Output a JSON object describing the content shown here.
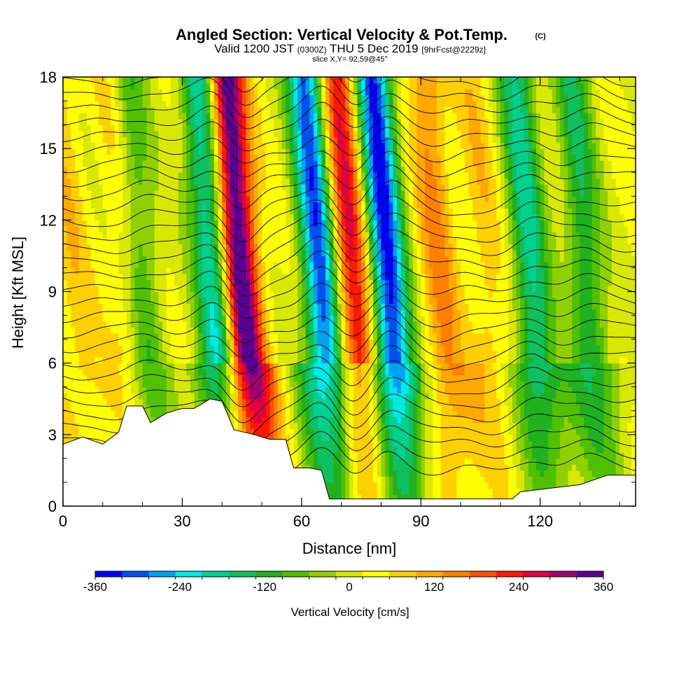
{
  "header": {
    "title": "Angled Section: Vertical Velocity & Pot.Temp.",
    "title_mark": "(C)",
    "valid_prefix": "Valid 1200 JST",
    "valid_zulu": "(0300Z)",
    "valid_date": "THU 5 Dec 2019",
    "forecast": "[9hrFcst@2229z]",
    "slice": "slice X,Y= 92,59@45°"
  },
  "chart_data": {
    "type": "heatmap",
    "xlabel": "Distance [nm]",
    "ylabel": "Height [Kft MSL]",
    "xlim": [
      0,
      144
    ],
    "ylim": [
      0,
      18
    ],
    "x_ticks": [
      0,
      30,
      60,
      90,
      120
    ],
    "y_ticks": [
      0,
      3,
      6,
      9,
      12,
      15,
      18
    ],
    "series": [
      {
        "kind": "updraft",
        "x": [
          45,
          73,
          95,
          107,
          16,
          3
        ],
        "peak_cm_s": [
          360,
          240,
          120,
          60,
          60,
          60
        ]
      },
      {
        "kind": "downdraft",
        "x": [
          38,
          65,
          82,
          118,
          132,
          20
        ],
        "peak_cm_s": [
          -240,
          -330,
          -360,
          -200,
          -150,
          -120
        ]
      }
    ],
    "terrain_kft": [
      [
        0,
        2.6
      ],
      [
        5,
        2.9
      ],
      [
        10,
        2.6
      ],
      [
        14,
        3.1
      ],
      [
        16,
        4.2
      ],
      [
        20,
        4.2
      ],
      [
        22,
        3.5
      ],
      [
        26,
        3.9
      ],
      [
        30,
        4.1
      ],
      [
        33,
        4.1
      ],
      [
        37,
        4.5
      ],
      [
        40,
        4.4
      ],
      [
        43,
        3.2
      ],
      [
        48,
        3.0
      ],
      [
        52,
        2.8
      ],
      [
        56,
        2.8
      ],
      [
        58,
        1.6
      ],
      [
        62,
        1.6
      ],
      [
        65,
        1.5
      ],
      [
        67,
        0.3
      ],
      [
        100,
        0.3
      ],
      [
        113,
        0.3
      ],
      [
        115,
        0.6
      ],
      [
        130,
        0.9
      ],
      [
        137,
        1.3
      ],
      [
        144,
        1.3
      ]
    ],
    "theta_contours": {
      "count": 30,
      "base_kft": 0.4,
      "spacing_kft": 0.58
    }
  },
  "colorbar": {
    "min": -360,
    "max": 360,
    "step": 40,
    "tick_labels": [
      "-360",
      "-240",
      "-120",
      "0",
      "120",
      "240",
      "360"
    ],
    "tick_values": [
      -360,
      -240,
      -120,
      0,
      120,
      240,
      360
    ],
    "colors": [
      "#0000ff",
      "#0050f0",
      "#00a0f0",
      "#00e8e8",
      "#00d090",
      "#10c060",
      "#20b020",
      "#50c000",
      "#90d000",
      "#d8e800",
      "#ffff00",
      "#ffd000",
      "#ffa800",
      "#ff8000",
      "#ff5000",
      "#ff1800",
      "#e00040",
      "#a00070",
      "#5a0090"
    ],
    "label": "Vertical Velocity [cm/s]"
  }
}
